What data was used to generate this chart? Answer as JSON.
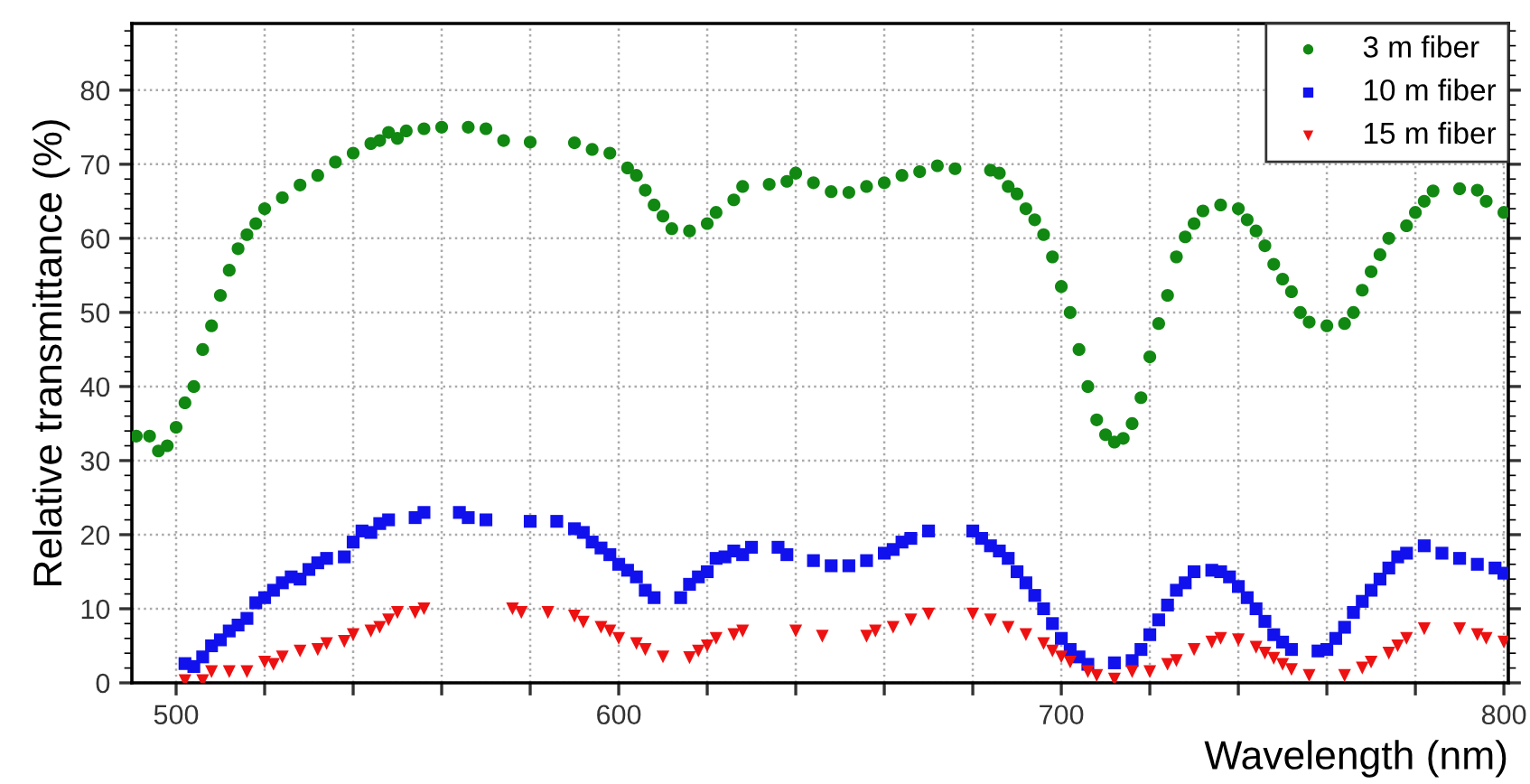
{
  "chart_data": {
    "type": "scatter",
    "xlabel": "Wavelength (nm)",
    "ylabel": "Relative transmittance (%)",
    "xlim": [
      490,
      801
    ],
    "ylim": [
      0,
      89
    ],
    "xticks": [
      500,
      {
        "value": 520,
        "label": null
      },
      {
        "value": 540,
        "label": null
      },
      {
        "value": 560,
        "label": null
      },
      {
        "value": 580,
        "label": null
      },
      600,
      {
        "value": 620,
        "label": null
      },
      {
        "value": 640,
        "label": null
      },
      {
        "value": 660,
        "label": null
      },
      {
        "value": 680,
        "label": null
      },
      700,
      {
        "value": 720,
        "label": null
      },
      {
        "value": 740,
        "label": null
      },
      {
        "value": 760,
        "label": null
      },
      {
        "value": 780,
        "label": null
      },
      800
    ],
    "yticks": [
      0,
      10,
      20,
      30,
      40,
      50,
      60,
      70,
      80
    ],
    "grid": true,
    "legend": "top right",
    "series": [
      {
        "name": "3 m fiber",
        "color": "#118811",
        "marker": "circle",
        "x": [
          491,
          494,
          496,
          498,
          500,
          502,
          504,
          506,
          508,
          510,
          512,
          514,
          516,
          518,
          520,
          524,
          528,
          532,
          536,
          540,
          544,
          546,
          548,
          550,
          552,
          556,
          560,
          566,
          570,
          574,
          580,
          590,
          594,
          598,
          602,
          604,
          606,
          608,
          610,
          612,
          616,
          620,
          622,
          626,
          628,
          634,
          638,
          640,
          644,
          648,
          652,
          656,
          660,
          664,
          668,
          672,
          676,
          684,
          686,
          688,
          690,
          692,
          694,
          696,
          698,
          700,
          702,
          704,
          706,
          708,
          710,
          712,
          714,
          716,
          718,
          720,
          722,
          724,
          726,
          728,
          730,
          732,
          736,
          740,
          742,
          744,
          746,
          748,
          750,
          752,
          754,
          756,
          760,
          764,
          766,
          768,
          770,
          772,
          774,
          778,
          780,
          782,
          784,
          790,
          794,
          796,
          800
        ],
        "values": [
          33.3,
          33.3,
          31.3,
          32,
          34.5,
          37.8,
          40,
          45,
          48.2,
          52.3,
          55.7,
          58.6,
          60.5,
          62,
          64,
          65.5,
          67.2,
          68.5,
          70.3,
          71.5,
          72.8,
          73.2,
          74.3,
          73.5,
          74.5,
          74.8,
          75,
          75,
          74.8,
          73.2,
          73,
          72.9,
          72,
          71.5,
          69.5,
          68.5,
          66.5,
          64.5,
          63,
          61.3,
          61,
          62,
          63.5,
          65.2,
          67,
          67.3,
          67.7,
          68.8,
          67.5,
          66.3,
          66.2,
          67,
          67.5,
          68.5,
          69,
          69.8,
          69.4,
          69.2,
          68.8,
          67,
          66,
          64,
          62.5,
          60.5,
          57.5,
          53.5,
          50,
          45,
          40,
          35.5,
          33.5,
          32.5,
          33,
          35,
          38.5,
          44,
          48.5,
          52.3,
          57.5,
          60.2,
          62,
          63.7,
          64.5,
          64,
          62.5,
          61,
          59,
          56.5,
          54.5,
          52.8,
          50,
          48.7,
          48.2,
          48.5,
          50,
          53,
          55.5,
          57.8,
          60,
          61.7,
          63.5,
          65,
          66.4,
          66.7,
          66.5,
          65,
          63.5
        ]
      },
      {
        "name": "10 m fiber",
        "color": "#1111ee",
        "marker": "square",
        "x": [
          502,
          504,
          506,
          508,
          510,
          512,
          514,
          516,
          518,
          520,
          522,
          524,
          526,
          528,
          530,
          532,
          534,
          538,
          540,
          542,
          544,
          546,
          548,
          554,
          556,
          564,
          566,
          570,
          580,
          586,
          590,
          592,
          594,
          596,
          598,
          600,
          602,
          604,
          606,
          608,
          614,
          616,
          618,
          620,
          622,
          624,
          626,
          628,
          630,
          636,
          638,
          644,
          648,
          652,
          656,
          660,
          662,
          664,
          666,
          670,
          680,
          682,
          684,
          686,
          688,
          690,
          692,
          694,
          696,
          698,
          700,
          702,
          704,
          706,
          712,
          716,
          718,
          720,
          722,
          724,
          726,
          728,
          730,
          734,
          736,
          738,
          740,
          742,
          744,
          746,
          748,
          750,
          752,
          758,
          760,
          762,
          764,
          766,
          768,
          770,
          772,
          774,
          776,
          778,
          782,
          786,
          790,
          794,
          798,
          800
        ],
        "values": [
          2.6,
          2.2,
          3.5,
          5,
          5.8,
          7,
          7.8,
          8.7,
          10.8,
          11.5,
          12.5,
          13.5,
          14.3,
          14,
          15.3,
          16.2,
          16.8,
          17,
          19,
          20.5,
          20.3,
          21.5,
          22,
          22.3,
          23,
          23,
          22.3,
          22,
          21.8,
          21.8,
          20.8,
          20.3,
          19,
          18.2,
          17.3,
          16,
          15.2,
          14.3,
          12.5,
          11.5,
          11.5,
          13.3,
          14.3,
          15,
          16.8,
          17,
          17.8,
          17.3,
          18.3,
          18.3,
          17.3,
          16.5,
          15.8,
          15.8,
          16.5,
          17.5,
          18,
          19,
          19.5,
          20.5,
          20.5,
          19.5,
          18.5,
          17.8,
          16.8,
          15,
          13.5,
          11.8,
          10,
          8,
          6,
          4.5,
          3.5,
          2.5,
          2.7,
          3,
          4.5,
          6.5,
          8.5,
          10.5,
          12.5,
          13.5,
          15,
          15.2,
          15,
          14.3,
          13,
          11.5,
          10,
          8.3,
          6.5,
          5.5,
          4.5,
          4.3,
          4.5,
          6,
          7.5,
          9.5,
          11,
          12.5,
          14,
          15.5,
          17,
          17.5,
          18.5,
          17.5,
          16.8,
          16,
          15.5,
          14.8
        ]
      },
      {
        "name": "15 m fiber",
        "color": "#ee1111",
        "marker": "triangle",
        "x": [
          502,
          506,
          508,
          512,
          516,
          520,
          522,
          524,
          528,
          532,
          534,
          538,
          540,
          544,
          546,
          548,
          550,
          554,
          556,
          576,
          578,
          584,
          590,
          592,
          596,
          598,
          600,
          604,
          606,
          610,
          616,
          618,
          620,
          622,
          626,
          628,
          640,
          646,
          656,
          658,
          662,
          666,
          670,
          680,
          684,
          688,
          692,
          696,
          698,
          700,
          702,
          706,
          708,
          712,
          716,
          720,
          724,
          726,
          730,
          734,
          736,
          740,
          744,
          746,
          748,
          750,
          752,
          756,
          764,
          768,
          770,
          774,
          776,
          778,
          782,
          790,
          794,
          796,
          800
        ],
        "values": [
          0.3,
          0.3,
          1.5,
          1.5,
          1.5,
          2.8,
          2.5,
          3.5,
          4.3,
          4.5,
          5.3,
          5.6,
          6.5,
          7,
          7.5,
          8.5,
          9.5,
          9.5,
          10,
          10,
          9.5,
          9.5,
          9,
          8.2,
          7.5,
          7,
          6,
          5.3,
          4.5,
          3.5,
          3.4,
          4.3,
          5,
          6,
          6.5,
          7,
          7,
          6.3,
          6.3,
          7,
          7.5,
          8.5,
          9.3,
          9.3,
          8.5,
          7.5,
          6.5,
          5.3,
          4.3,
          3.5,
          2.8,
          1.5,
          1,
          0.5,
          1.5,
          1.5,
          2.5,
          3,
          4.5,
          5.5,
          6,
          5.8,
          4.8,
          4,
          3.3,
          2.5,
          1.8,
          1,
          1,
          2,
          2.8,
          4,
          5,
          6,
          7.3,
          7.3,
          6.5,
          6,
          5.5
        ]
      }
    ]
  }
}
